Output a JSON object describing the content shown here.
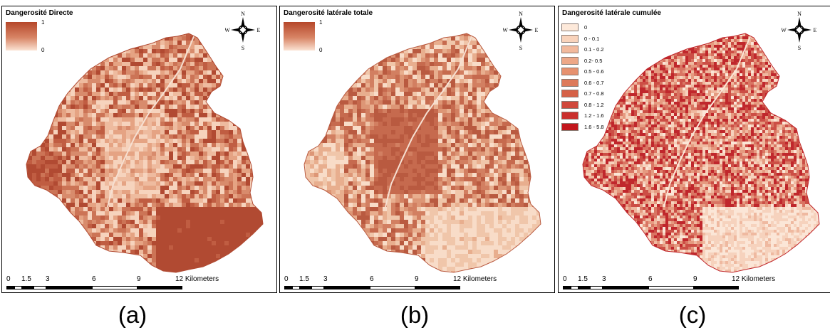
{
  "panels": {
    "a": {
      "title": "Dangerosité Directe",
      "legend": {
        "type": "gradient",
        "max": "1",
        "min": "0",
        "color_high": "#b5472a",
        "color_low": "#fbe3d3"
      },
      "palette": [
        "#f6d3bd",
        "#eebb9f",
        "#e5a383",
        "#d88b6c",
        "#cc7456",
        "#c05d42",
        "#b14a32"
      ],
      "caption": "(a)"
    },
    "b": {
      "title": "Dangerosité latérale totale",
      "legend": {
        "type": "gradient",
        "max": "1",
        "min": "0",
        "color_high": "#b5472a",
        "color_low": "#fbe3d3"
      },
      "palette": [
        "#f8dcc8",
        "#f0c6aa",
        "#e8ae8e",
        "#dd9676",
        "#d27f61",
        "#c66a4e",
        "#b95a40"
      ],
      "caption": "(b)"
    },
    "c": {
      "title": "Dangerosité latérale cumulée",
      "legend": {
        "type": "classes",
        "items": [
          {
            "label": "0",
            "color": "#fde9da"
          },
          {
            "label": "0 - 0.1",
            "color": "#f9d3bb"
          },
          {
            "label": "0.1 - 0.2",
            "color": "#f2b99c"
          },
          {
            "label": "0.2- 0.5",
            "color": "#eda787"
          },
          {
            "label": "0.5 - 0.6",
            "color": "#e6916f"
          },
          {
            "label": "0.6 - 0.7",
            "color": "#dd7a5a"
          },
          {
            "label": "0.7 - 0.8",
            "color": "#d56147"
          },
          {
            "label": "0.8 - 1.2",
            "color": "#d0483b"
          },
          {
            "label": "1.2 - 1.6",
            "color": "#ca2f2c"
          },
          {
            "label": "1.6 - 5.8",
            "color": "#c3161c"
          }
        ]
      },
      "palette": [
        "#fbe6d7",
        "#f6d2bd",
        "#efb9a0",
        "#e59a80",
        "#d97563",
        "#cc4e45",
        "#c0272c"
      ],
      "caption": "(c)"
    }
  },
  "compass": {
    "n": "N",
    "s": "S",
    "e": "E",
    "w": "W"
  },
  "scale_bar": {
    "ticks": [
      "0",
      "1.5",
      "3",
      "6",
      "9",
      "12 Kilometers"
    ]
  }
}
